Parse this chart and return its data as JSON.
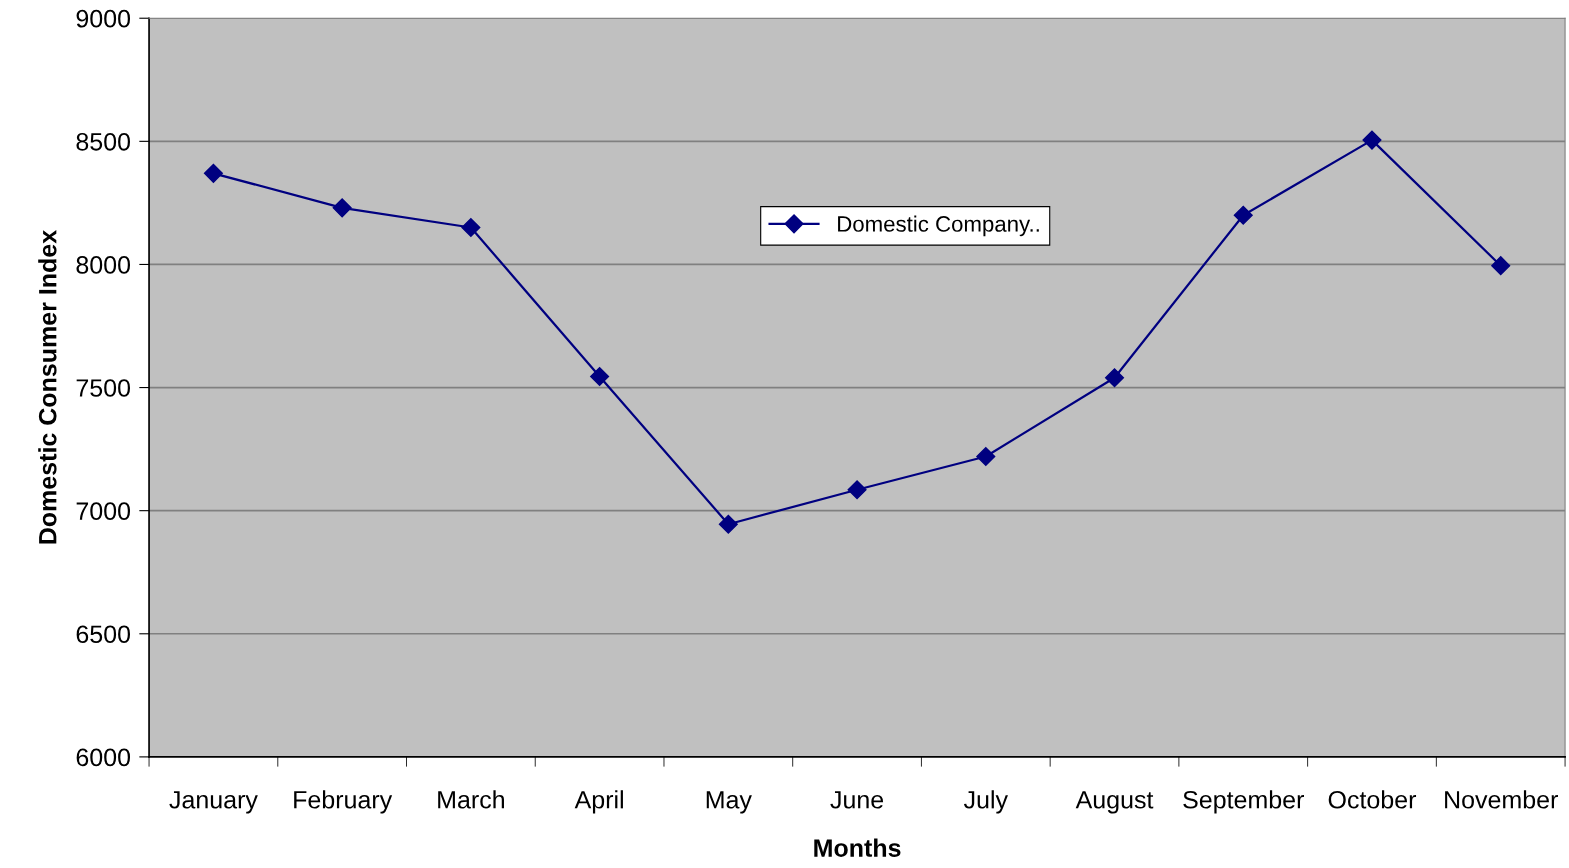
{
  "chart_data": {
    "type": "line",
    "xlabel": "Months",
    "ylabel": "Domestic Consumer Index",
    "categories": [
      "January",
      "February",
      "March",
      "April",
      "May",
      "June",
      "July",
      "August",
      "September",
      "October",
      "November"
    ],
    "series": [
      {
        "name": "Domestic Company..",
        "color": "#000080",
        "values": [
          8370,
          8230,
          8150,
          7545,
          6945,
          7085,
          7220,
          7540,
          8200,
          8505,
          7995
        ]
      }
    ],
    "ylim": [
      6000,
      9000
    ],
    "yticks": [
      6000,
      6500,
      7000,
      7500,
      8000,
      8500,
      9000
    ],
    "grid": "y",
    "legend": "top",
    "marker": "diamond",
    "line_style": "solid"
  }
}
